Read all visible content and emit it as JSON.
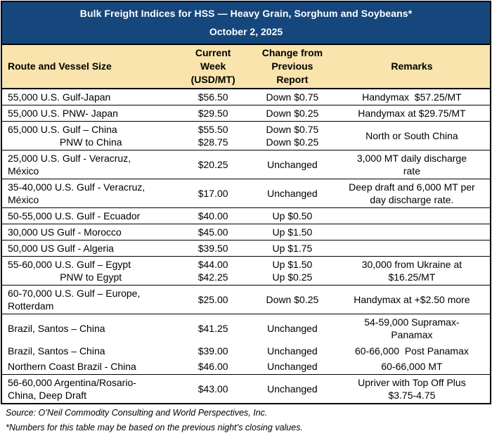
{
  "title_band": {
    "title": "Bulk Freight Indices for HSS — Heavy Grain, Sorghum and Soybeans*",
    "date": "October 2, 2025"
  },
  "columns": {
    "route": "Route and Vessel Size",
    "current": "Current\nWeek\n(USD/MT)",
    "change": "Change from\nPrevious\nReport",
    "remarks": "Remarks"
  },
  "table": {
    "rows": [
      {
        "route": "55,000 U.S. Gulf-Japan",
        "current": [
          "$56.50"
        ],
        "change": [
          "Down $0.75"
        ],
        "remarks": "Handymax  $57.25/MT"
      },
      {
        "route": "55,000 U.S. PNW- Japan",
        "current": [
          "$29.50"
        ],
        "change": [
          "Down $0.25"
        ],
        "remarks": "Handymax at $29.75/MT"
      },
      {
        "route": "65,000 U.S. Gulf – China",
        "sub_route": "PNW to China",
        "current": [
          "$55.50",
          "$28.75"
        ],
        "change": [
          "Down $0.75",
          "Down $0.25"
        ],
        "remarks": "North or South China"
      },
      {
        "route": "25,000 U.S. Gulf - Veracruz,\nMéxico",
        "current": [
          "$20.25"
        ],
        "change": [
          "Unchanged"
        ],
        "remarks": "3,000 MT daily discharge\nrate"
      },
      {
        "route": "35-40,000 U.S. Gulf - Veracruz,\nMéxico",
        "current": [
          "$17.00"
        ],
        "change": [
          "Unchanged"
        ],
        "remarks": "Deep draft and 6,000 MT per\nday discharge rate."
      },
      {
        "route": "50-55,000 U.S. Gulf - Ecuador",
        "current": [
          "$40.00"
        ],
        "change": [
          "Up $0.50"
        ],
        "remarks": ""
      },
      {
        "route": "30,000 US Gulf - Morocco",
        "current": [
          "$45.00"
        ],
        "change": [
          "Up $1.50"
        ],
        "remarks": ""
      },
      {
        "route": "50,000 US Gulf - Algeria",
        "current": [
          "$39.50"
        ],
        "change": [
          "Up $1.75"
        ],
        "remarks": ""
      },
      {
        "route": "55-60,000 U.S. Gulf – Egypt",
        "sub_route": "PNW to Egypt",
        "current": [
          "$44.00",
          "$42.25"
        ],
        "change": [
          "Up $1.50",
          "Up $0.25"
        ],
        "remarks": "30,000 from Ukraine at\n$16.25/MT"
      },
      {
        "route": "60-70,000 U.S. Gulf – Europe,\nRotterdam",
        "current": [
          "$25.00"
        ],
        "change": [
          "Down $0.25"
        ],
        "remarks": "Handymax at +$2.50 more"
      },
      {
        "route": "Brazil, Santos – China",
        "current": [
          "$41.25"
        ],
        "change": [
          "Unchanged"
        ],
        "remarks": "54-59,000 Supramax-\nPanamax",
        "grouped_with_next": true
      },
      {
        "route": "Brazil, Santos – China",
        "current": [
          "$39.00"
        ],
        "change": [
          "Unchanged"
        ],
        "remarks": "60-66,000  Post Panamax",
        "grouped_with_next": true
      },
      {
        "route": "Northern Coast Brazil - China",
        "current": [
          "$46.00"
        ],
        "change": [
          "Unchanged"
        ],
        "remarks": "60-66,000 MT"
      },
      {
        "route": "56-60,000 Argentina/Rosario-\nChina, Deep Draft",
        "current": [
          "$43.00"
        ],
        "change": [
          "Unchanged"
        ],
        "remarks": "Upriver with Top Off Plus\n$3.75-4.75"
      }
    ]
  },
  "footer": {
    "source": "Source: O’Neil Commodity Consulting and World Perspectives, Inc.",
    "note": "*Numbers for this table may be based on the previous night’s closing values."
  },
  "colors": {
    "title_band_blue": "#15477D",
    "header_cream": "#F8E4AC",
    "border_black": "#000000"
  }
}
